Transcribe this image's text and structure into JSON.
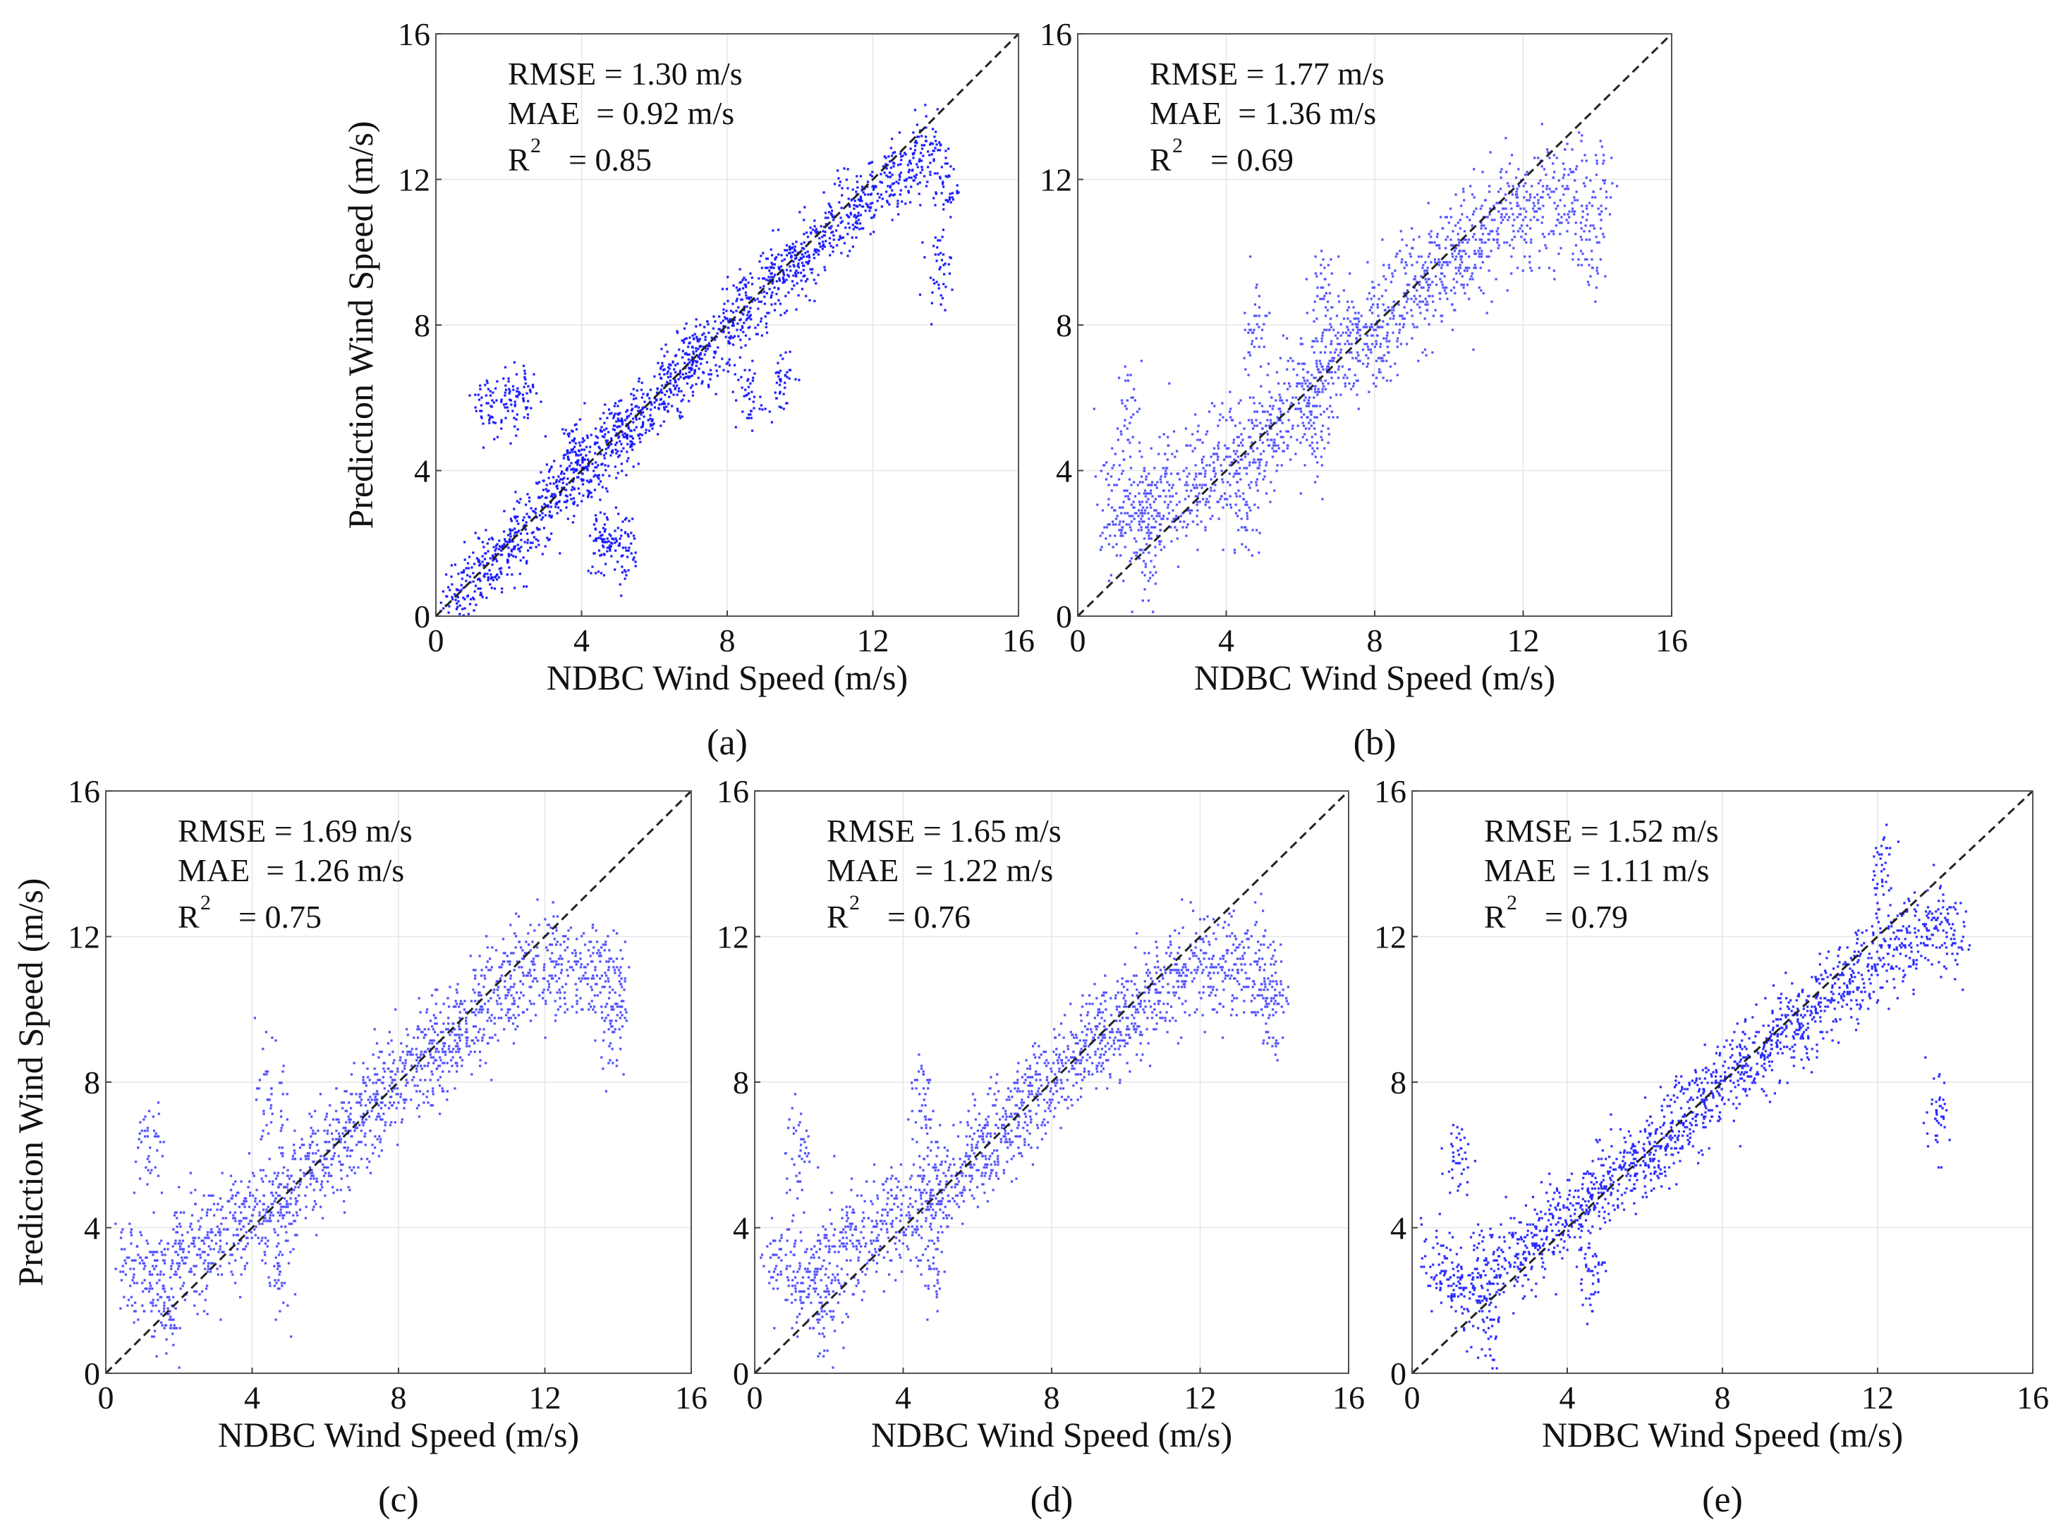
{
  "figure": {
    "panels": [
      {
        "caption": "(a)",
        "xlabel": "NDBC Wind Speed (m/s)",
        "ylabel": "Prediction Wind Speed (m/s)",
        "stats": {
          "rmse": "RMSE = 1.30 m/s",
          "mae": "MAE  = 0.92 m/s",
          "r2_label": "R",
          "r2_sup": "2",
          "r2_value": "= 0.85"
        }
      },
      {
        "caption": "(b)",
        "xlabel": "NDBC Wind Speed (m/s)",
        "ylabel": "",
        "stats": {
          "rmse": "RMSE = 1.77 m/s",
          "mae": "MAE  = 1.36 m/s",
          "r2_label": "R",
          "r2_sup": "2",
          "r2_value": "= 0.69"
        }
      },
      {
        "caption": "(c)",
        "xlabel": "NDBC Wind Speed (m/s)",
        "ylabel": "Prediction Wind Speed (m/s)",
        "stats": {
          "rmse": "RMSE = 1.69 m/s",
          "mae": "MAE  = 1.26 m/s",
          "r2_label": "R",
          "r2_sup": "2",
          "r2_value": "= 0.75"
        }
      },
      {
        "caption": "(d)",
        "xlabel": "NDBC Wind Speed (m/s)",
        "ylabel": "",
        "stats": {
          "rmse": "RMSE = 1.65 m/s",
          "mae": "MAE  = 1.22 m/s",
          "r2_label": "R",
          "r2_sup": "2",
          "r2_value": "= 0.76"
        }
      },
      {
        "caption": "(e)",
        "xlabel": "NDBC Wind Speed (m/s)",
        "ylabel": "",
        "stats": {
          "rmse": "RMSE = 1.52 m/s",
          "mae": "MAE  = 1.11 m/s",
          "r2_label": "R",
          "r2_sup": "2",
          "r2_value": "= 0.79"
        }
      }
    ]
  },
  "chart_data": [
    {
      "type": "scatter",
      "xlim": [
        0,
        16
      ],
      "ylim": [
        0,
        16
      ],
      "xticks": [
        0,
        4,
        8,
        12,
        16
      ],
      "yticks": [
        0,
        4,
        8,
        12,
        16
      ],
      "grid": true,
      "reference_line": "y = x (dashed)",
      "point_color": "#1a1aff",
      "spread": 1.1,
      "x": [
        0.5,
        0.9,
        1.3,
        1.6,
        2.0,
        2.2,
        2.6,
        3.0,
        3.2,
        3.6,
        3.9,
        4.2,
        4.5,
        4.8,
        5.0,
        5.3,
        5.6,
        5.9,
        6.2,
        6.5,
        6.8,
        7.0,
        7.3,
        7.6,
        8.0,
        8.3,
        8.6,
        9.0,
        9.3,
        9.6,
        9.9,
        10.2,
        10.5,
        10.9,
        11.3,
        11.6,
        12.0,
        12.4,
        12.8,
        13.2,
        13.6,
        14.0,
        1.4,
        2.0,
        2.5,
        4.5,
        4.8,
        5.2,
        9.5,
        13.8,
        3.8,
        8.6
      ],
      "y": [
        0.4,
        0.8,
        1.2,
        1.6,
        1.8,
        2.3,
        2.5,
        3.0,
        3.3,
        3.4,
        4.2,
        4.0,
        4.4,
        4.7,
        5.1,
        5.0,
        5.6,
        5.7,
        6.3,
        6.4,
        6.7,
        7.1,
        7.2,
        7.4,
        7.9,
        8.2,
        8.5,
        8.8,
        9.4,
        9.5,
        9.6,
        9.9,
        10.2,
        10.6,
        11.0,
        11.4,
        11.7,
        12.1,
        11.8,
        12.5,
        13.0,
        11.8,
        5.8,
        6.0,
        6.0,
        2.0,
        2.2,
        1.9,
        6.5,
        9.5,
        4.5,
        6.0
      ]
    },
    {
      "type": "scatter",
      "xlim": [
        0,
        16
      ],
      "ylim": [
        0,
        16
      ],
      "xticks": [
        0,
        4,
        8,
        12,
        16
      ],
      "yticks": [
        0,
        4,
        8,
        12,
        16
      ],
      "grid": true,
      "reference_line": "y = x (dashed)",
      "point_color": "#5050ff",
      "spread": 1.8,
      "x": [
        0.8,
        1.2,
        1.5,
        1.8,
        2.1,
        2.4,
        2.8,
        3.2,
        3.5,
        3.9,
        4.2,
        4.6,
        4.9,
        5.2,
        5.5,
        5.9,
        6.2,
        6.5,
        6.8,
        7.1,
        7.4,
        7.7,
        8.0,
        8.3,
        8.6,
        9.0,
        9.3,
        9.6,
        9.9,
        10.2,
        10.5,
        10.8,
        11.1,
        11.5,
        11.8,
        12.2,
        12.6,
        13.0,
        13.4,
        13.8,
        14.1,
        1.4,
        1.9,
        4.5,
        4.8,
        6.4,
        6.6
      ],
      "y": [
        2.8,
        3.0,
        2.5,
        3.1,
        2.9,
        3.5,
        3.2,
        3.8,
        4.0,
        4.3,
        4.4,
        4.8,
        4.6,
        5.2,
        5.4,
        5.9,
        6.1,
        6.6,
        6.5,
        7.2,
        7.3,
        7.6,
        8.0,
        8.3,
        8.4,
        9.0,
        9.1,
        9.2,
        9.6,
        9.8,
        10.0,
        10.4,
        10.6,
        10.9,
        11.2,
        11.0,
        11.5,
        11.0,
        11.6,
        10.5,
        11.5,
        5.5,
        2.0,
        3.0,
        8.0,
        5.0,
        9.0
      ]
    },
    {
      "type": "scatter",
      "xlim": [
        0,
        16
      ],
      "ylim": [
        0,
        16
      ],
      "xticks": [
        0,
        4,
        8,
        12,
        16
      ],
      "yticks": [
        0,
        4,
        8,
        12,
        16
      ],
      "grid": true,
      "reference_line": "y = x (dashed)",
      "point_color": "#4d4dff",
      "spread": 1.6,
      "x": [
        0.6,
        1.0,
        1.4,
        1.8,
        2.1,
        2.5,
        2.8,
        3.2,
        3.6,
        3.9,
        4.3,
        4.6,
        4.9,
        5.2,
        5.6,
        5.9,
        6.2,
        6.5,
        6.8,
        7.1,
        7.4,
        7.7,
        8.0,
        8.4,
        8.7,
        9.0,
        9.3,
        9.6,
        9.9,
        10.2,
        10.6,
        10.9,
        11.3,
        11.6,
        12.0,
        12.4,
        12.8,
        13.2,
        13.6,
        14.0,
        1.2,
        1.8,
        4.5,
        4.8,
        13.8
      ],
      "y": [
        3.0,
        2.8,
        2.5,
        2.9,
        3.1,
        3.6,
        3.4,
        3.9,
        4.0,
        4.3,
        4.5,
        4.8,
        5.0,
        5.1,
        5.6,
        5.8,
        6.2,
        6.5,
        6.7,
        7.0,
        7.4,
        7.6,
        7.9,
        8.3,
        8.6,
        8.8,
        9.1,
        9.4,
        9.6,
        9.9,
        10.2,
        10.5,
        10.8,
        11.2,
        11.3,
        11.0,
        11.4,
        11.2,
        11.0,
        10.5,
        6.2,
        1.5,
        7.5,
        3.0,
        9.5
      ]
    },
    {
      "type": "scatter",
      "xlim": [
        0,
        16
      ],
      "ylim": [
        0,
        16
      ],
      "xticks": [
        0,
        4,
        8,
        12,
        16
      ],
      "yticks": [
        0,
        4,
        8,
        12,
        16
      ],
      "grid": true,
      "reference_line": "y = x (dashed)",
      "point_color": "#4d4dff",
      "spread": 1.6,
      "x": [
        0.6,
        1.0,
        1.4,
        1.8,
        2.1,
        2.5,
        2.8,
        3.2,
        3.6,
        3.9,
        4.3,
        4.6,
        4.9,
        5.2,
        5.6,
        5.9,
        6.2,
        6.5,
        6.8,
        7.1,
        7.4,
        7.7,
        8.0,
        8.4,
        8.7,
        9.0,
        9.3,
        9.6,
        9.9,
        10.2,
        10.6,
        10.9,
        11.3,
        11.6,
        12.0,
        12.4,
        12.8,
        13.2,
        13.6,
        14.0,
        1.2,
        1.8,
        4.5,
        4.8,
        13.8
      ],
      "y": [
        3.0,
        2.7,
        2.6,
        2.9,
        3.2,
        3.6,
        3.5,
        3.9,
        4.1,
        4.4,
        4.6,
        4.9,
        5.0,
        5.2,
        5.7,
        5.9,
        6.3,
        6.5,
        6.8,
        7.1,
        7.4,
        7.7,
        8.0,
        8.4,
        8.6,
        8.9,
        9.2,
        9.4,
        9.7,
        10.0,
        10.3,
        10.6,
        10.9,
        11.2,
        11.4,
        11.1,
        11.4,
        11.0,
        11.2,
        10.6,
        6.0,
        1.4,
        7.6,
        3.0,
        9.8
      ]
    },
    {
      "type": "scatter",
      "xlim": [
        0,
        16
      ],
      "ylim": [
        0,
        16
      ],
      "xticks": [
        0,
        4,
        8,
        12,
        16
      ],
      "yticks": [
        0,
        4,
        8,
        12,
        16
      ],
      "grid": true,
      "reference_line": "y = x (dashed)",
      "point_color": "#2a2aff",
      "spread": 1.3,
      "x": [
        0.6,
        1.0,
        1.4,
        1.8,
        2.1,
        2.5,
        2.9,
        3.2,
        3.6,
        3.9,
        4.3,
        4.6,
        4.9,
        5.2,
        5.6,
        5.9,
        6.2,
        6.5,
        6.8,
        7.1,
        7.4,
        7.7,
        8.0,
        8.4,
        8.7,
        9.0,
        9.3,
        9.6,
        9.9,
        10.2,
        10.6,
        10.9,
        11.3,
        11.6,
        12.0,
        12.4,
        12.8,
        13.2,
        13.6,
        14.0,
        1.2,
        1.9,
        4.6,
        12.1,
        13.5
      ],
      "y": [
        3.0,
        2.6,
        2.4,
        2.8,
        3.0,
        3.4,
        3.2,
        3.8,
        4.0,
        4.2,
        4.4,
        4.8,
        4.9,
        5.2,
        5.5,
        5.9,
        6.3,
        6.4,
        6.8,
        7.0,
        7.4,
        7.6,
        8.0,
        8.3,
        8.5,
        8.8,
        9.1,
        9.4,
        9.6,
        9.7,
        10.1,
        10.4,
        10.8,
        11.1,
        11.4,
        11.6,
        11.9,
        12.2,
        12.6,
        11.8,
        6.0,
        1.4,
        2.6,
        13.8,
        7.0
      ]
    }
  ]
}
